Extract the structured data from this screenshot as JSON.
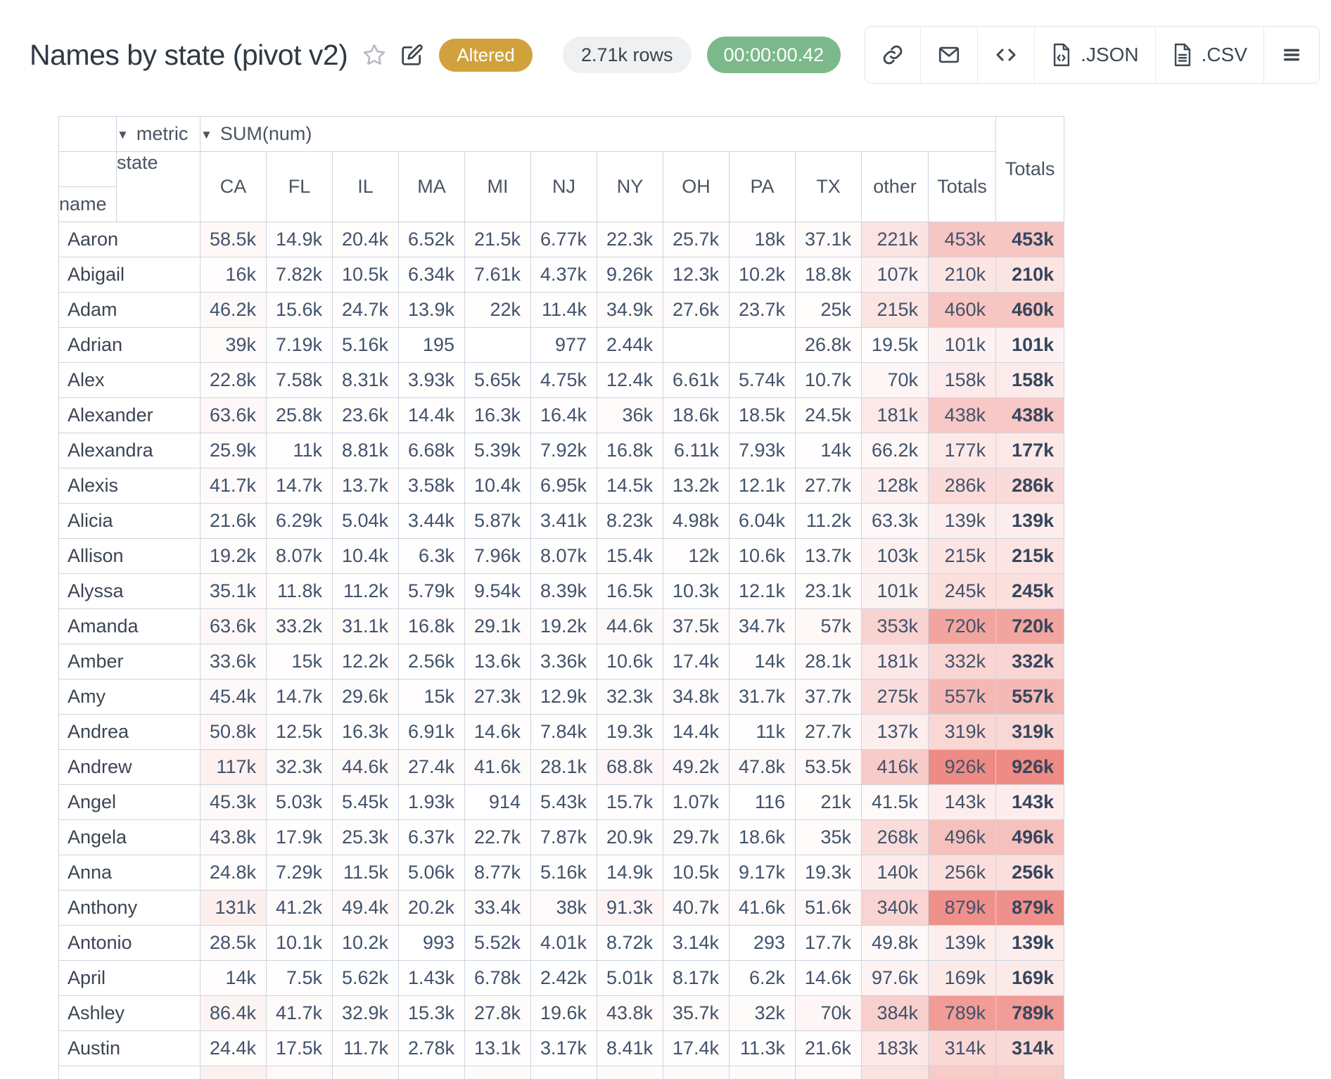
{
  "header": {
    "title": "Names by state (pivot v2)",
    "status_badge": "Altered",
    "rows_badge": "2.71k rows",
    "timer_badge": "00:00:00.42",
    "export_json_label": ".JSON",
    "export_csv_label": ".CSV",
    "icons": [
      "star-icon",
      "edit-icon",
      "link-icon",
      "mail-icon",
      "code-icon",
      "json-file-icon",
      "csv-file-icon",
      "menu-icon"
    ]
  },
  "colors": {
    "badge_gold": "#d1a23c",
    "badge_green": "#7cb98a",
    "badge_gray": "#eef0f1",
    "table_border": "#ccd5df",
    "heat_max_color": "#ee8b84",
    "value_text": "#42526b"
  },
  "pivot": {
    "metric_dropdown_label": "metric",
    "metric_value_label": "SUM(num)",
    "col_dimension_label": "state",
    "row_dimension_label": "name",
    "grand_totals_label": "Totals",
    "heat_max_value": 926000,
    "columns": [
      "CA",
      "FL",
      "IL",
      "MA",
      "MI",
      "NJ",
      "NY",
      "OH",
      "PA",
      "TX",
      "other",
      "Totals"
    ],
    "rows": [
      {
        "name": "Aaron",
        "values": [
          "58.5k",
          "14.9k",
          "20.4k",
          "6.52k",
          "21.5k",
          "6.77k",
          "22.3k",
          "25.7k",
          "18k",
          "37.1k",
          "221k",
          "453k"
        ],
        "grand": "453k"
      },
      {
        "name": "Abigail",
        "values": [
          "16k",
          "7.82k",
          "10.5k",
          "6.34k",
          "7.61k",
          "4.37k",
          "9.26k",
          "12.3k",
          "10.2k",
          "18.8k",
          "107k",
          "210k"
        ],
        "grand": "210k"
      },
      {
        "name": "Adam",
        "values": [
          "46.2k",
          "15.6k",
          "24.7k",
          "13.9k",
          "22k",
          "11.4k",
          "34.9k",
          "27.6k",
          "23.7k",
          "25k",
          "215k",
          "460k"
        ],
        "grand": "460k"
      },
      {
        "name": "Adrian",
        "values": [
          "39k",
          "7.19k",
          "5.16k",
          "195",
          "",
          "977",
          "2.44k",
          "",
          "",
          "26.8k",
          "19.5k",
          "101k"
        ],
        "grand": "101k"
      },
      {
        "name": "Alex",
        "values": [
          "22.8k",
          "7.58k",
          "8.31k",
          "3.93k",
          "5.65k",
          "4.75k",
          "12.4k",
          "6.61k",
          "5.74k",
          "10.7k",
          "70k",
          "158k"
        ],
        "grand": "158k"
      },
      {
        "name": "Alexander",
        "values": [
          "63.6k",
          "25.8k",
          "23.6k",
          "14.4k",
          "16.3k",
          "16.4k",
          "36k",
          "18.6k",
          "18.5k",
          "24.5k",
          "181k",
          "438k"
        ],
        "grand": "438k"
      },
      {
        "name": "Alexandra",
        "values": [
          "25.9k",
          "11k",
          "8.81k",
          "6.68k",
          "5.39k",
          "7.92k",
          "16.8k",
          "6.11k",
          "7.93k",
          "14k",
          "66.2k",
          "177k"
        ],
        "grand": "177k"
      },
      {
        "name": "Alexis",
        "values": [
          "41.7k",
          "14.7k",
          "13.7k",
          "3.58k",
          "10.4k",
          "6.95k",
          "14.5k",
          "13.2k",
          "12.1k",
          "27.7k",
          "128k",
          "286k"
        ],
        "grand": "286k"
      },
      {
        "name": "Alicia",
        "values": [
          "21.6k",
          "6.29k",
          "5.04k",
          "3.44k",
          "5.87k",
          "3.41k",
          "8.23k",
          "4.98k",
          "6.04k",
          "11.2k",
          "63.3k",
          "139k"
        ],
        "grand": "139k"
      },
      {
        "name": "Allison",
        "values": [
          "19.2k",
          "8.07k",
          "10.4k",
          "6.3k",
          "7.96k",
          "8.07k",
          "15.4k",
          "12k",
          "10.6k",
          "13.7k",
          "103k",
          "215k"
        ],
        "grand": "215k"
      },
      {
        "name": "Alyssa",
        "values": [
          "35.1k",
          "11.8k",
          "11.2k",
          "5.79k",
          "9.54k",
          "8.39k",
          "16.5k",
          "10.3k",
          "12.1k",
          "23.1k",
          "101k",
          "245k"
        ],
        "grand": "245k"
      },
      {
        "name": "Amanda",
        "values": [
          "63.6k",
          "33.2k",
          "31.1k",
          "16.8k",
          "29.1k",
          "19.2k",
          "44.6k",
          "37.5k",
          "34.7k",
          "57k",
          "353k",
          "720k"
        ],
        "grand": "720k"
      },
      {
        "name": "Amber",
        "values": [
          "33.6k",
          "15k",
          "12.2k",
          "2.56k",
          "13.6k",
          "3.36k",
          "10.6k",
          "17.4k",
          "14k",
          "28.1k",
          "181k",
          "332k"
        ],
        "grand": "332k"
      },
      {
        "name": "Amy",
        "values": [
          "45.4k",
          "14.7k",
          "29.6k",
          "15k",
          "27.3k",
          "12.9k",
          "32.3k",
          "34.8k",
          "31.7k",
          "37.7k",
          "275k",
          "557k"
        ],
        "grand": "557k"
      },
      {
        "name": "Andrea",
        "values": [
          "50.8k",
          "12.5k",
          "16.3k",
          "6.91k",
          "14.6k",
          "7.84k",
          "19.3k",
          "14.4k",
          "11k",
          "27.7k",
          "137k",
          "319k"
        ],
        "grand": "319k"
      },
      {
        "name": "Andrew",
        "values": [
          "117k",
          "32.3k",
          "44.6k",
          "27.4k",
          "41.6k",
          "28.1k",
          "68.8k",
          "49.2k",
          "47.8k",
          "53.5k",
          "416k",
          "926k"
        ],
        "grand": "926k"
      },
      {
        "name": "Angel",
        "values": [
          "45.3k",
          "5.03k",
          "5.45k",
          "1.93k",
          "914",
          "5.43k",
          "15.7k",
          "1.07k",
          "116",
          "21k",
          "41.5k",
          "143k"
        ],
        "grand": "143k"
      },
      {
        "name": "Angela",
        "values": [
          "43.8k",
          "17.9k",
          "25.3k",
          "6.37k",
          "22.7k",
          "7.87k",
          "20.9k",
          "29.7k",
          "18.6k",
          "35k",
          "268k",
          "496k"
        ],
        "grand": "496k"
      },
      {
        "name": "Anna",
        "values": [
          "24.8k",
          "7.29k",
          "11.5k",
          "5.06k",
          "8.77k",
          "5.16k",
          "14.9k",
          "10.5k",
          "9.17k",
          "19.3k",
          "140k",
          "256k"
        ],
        "grand": "256k"
      },
      {
        "name": "Anthony",
        "values": [
          "131k",
          "41.2k",
          "49.4k",
          "20.2k",
          "33.4k",
          "38k",
          "91.3k",
          "40.7k",
          "41.6k",
          "51.6k",
          "340k",
          "879k"
        ],
        "grand": "879k"
      },
      {
        "name": "Antonio",
        "values": [
          "28.5k",
          "10.1k",
          "10.2k",
          "993",
          "5.52k",
          "4.01k",
          "8.72k",
          "3.14k",
          "293",
          "17.7k",
          "49.8k",
          "139k"
        ],
        "grand": "139k"
      },
      {
        "name": "April",
        "values": [
          "14k",
          "7.5k",
          "5.62k",
          "1.43k",
          "6.78k",
          "2.42k",
          "5.01k",
          "8.17k",
          "6.2k",
          "14.6k",
          "97.6k",
          "169k"
        ],
        "grand": "169k"
      },
      {
        "name": "Ashley",
        "values": [
          "86.4k",
          "41.7k",
          "32.9k",
          "15.3k",
          "27.8k",
          "19.6k",
          "43.8k",
          "35.7k",
          "32k",
          "70k",
          "384k",
          "789k"
        ],
        "grand": "789k"
      },
      {
        "name": "Austin",
        "values": [
          "24.4k",
          "17.5k",
          "11.7k",
          "2.78k",
          "13.1k",
          "3.17k",
          "8.41k",
          "17.4k",
          "11.3k",
          "21.6k",
          "183k",
          "314k"
        ],
        "grand": "314k"
      }
    ]
  }
}
